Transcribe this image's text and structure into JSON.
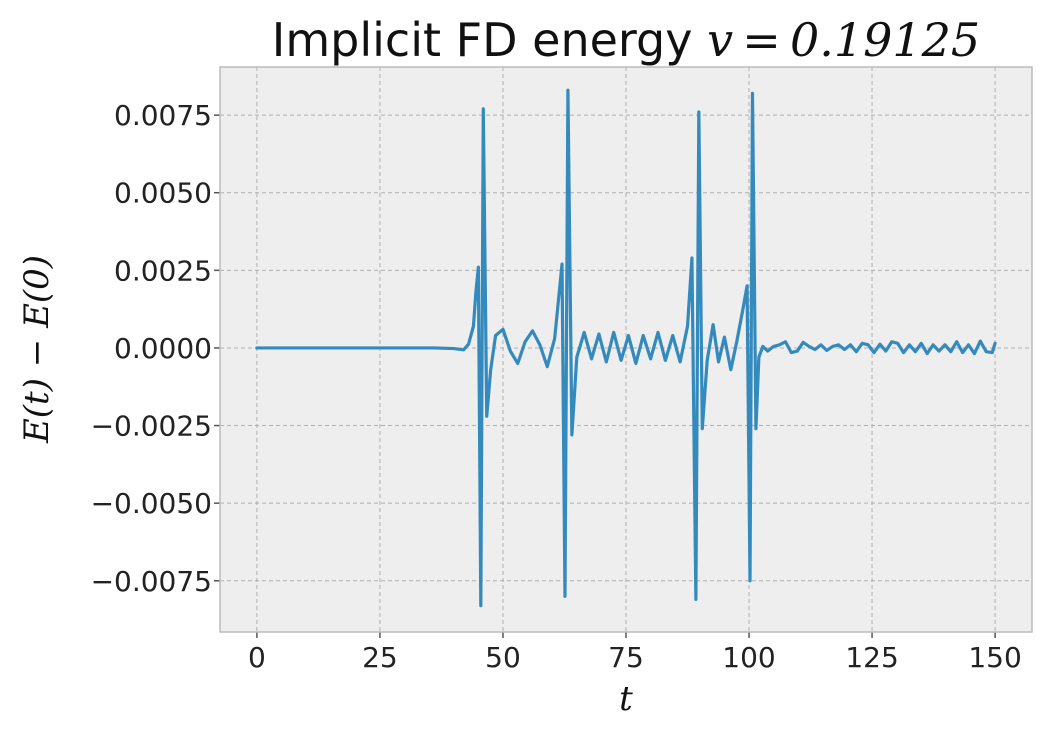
{
  "chart_data": {
    "type": "line",
    "title": {
      "text": "Implicit FD energy ",
      "math": "v = 0.19125"
    },
    "xlabel": "t",
    "ylabel": "E(t) − E(0)",
    "xlim": [
      -7.5,
      157.5
    ],
    "ylim": [
      -0.00915,
      0.00905
    ],
    "xticks": [
      {
        "value": 0,
        "label": "0"
      },
      {
        "value": 25,
        "label": "25"
      },
      {
        "value": 50,
        "label": "50"
      },
      {
        "value": 75,
        "label": "75"
      },
      {
        "value": 100,
        "label": "100"
      },
      {
        "value": 125,
        "label": "125"
      },
      {
        "value": 150,
        "label": "150"
      }
    ],
    "yticks": [
      {
        "value": -0.0075,
        "label": "−0.0075"
      },
      {
        "value": -0.005,
        "label": "−0.0050"
      },
      {
        "value": -0.0025,
        "label": "−0.0025"
      },
      {
        "value": 0,
        "label": "0.0000"
      },
      {
        "value": 0.0025,
        "label": "0.0025"
      },
      {
        "value": 0.005,
        "label": "0.0050"
      },
      {
        "value": 0.0075,
        "label": "0.0075"
      }
    ],
    "grid": true,
    "colors": {
      "line": "#348abd",
      "background": "#eeeeee",
      "frame": "#bcbcbc"
    },
    "series": [
      {
        "x": [
          0,
          10,
          20,
          30,
          36,
          40,
          42,
          43,
          44,
          44.5,
          45,
          45.5,
          46,
          46.7,
          47.5,
          48.5,
          50,
          51.5,
          53,
          54.5,
          56,
          57.5,
          59,
          60.5,
          62,
          62.6,
          63.2,
          64,
          65,
          66.5,
          68,
          69.5,
          71,
          72.5,
          74,
          75.5,
          77,
          78.5,
          80,
          81.5,
          83,
          84.5,
          86,
          87.5,
          88.4,
          89.2,
          89.8,
          90.5,
          91.5,
          92.7,
          93.8,
          95,
          96.3,
          97.5,
          98.7,
          99.6,
          100.2,
          100.7,
          101.4,
          102,
          102.8,
          103.8,
          105,
          106.2,
          107.4,
          108.6,
          109.8,
          111,
          112.2,
          113.4,
          114.6,
          115.8,
          117,
          118.2,
          119.4,
          120.6,
          121.8,
          123,
          124.2,
          125.4,
          126.6,
          127.8,
          129,
          130.2,
          131.4,
          132.6,
          133.8,
          135,
          136.2,
          137.4,
          138.6,
          139.8,
          141,
          142.2,
          143.4,
          144.6,
          145.8,
          147,
          148.2,
          149.4,
          150
        ],
        "y": [
          0,
          0,
          0,
          0,
          0,
          -2e-05,
          -6e-05,
          0.00012,
          0.0007,
          0.0018,
          0.0026,
          -0.0083,
          0.0077,
          -0.0022,
          -0.0007,
          0.0004,
          0.0006,
          -0.0001,
          -0.0005,
          0.0002,
          0.00055,
          0.0001,
          -0.0006,
          0.0003,
          0.0027,
          -0.008,
          0.0083,
          -0.0028,
          -0.0003,
          0.0005,
          -0.00035,
          0.00045,
          -0.00045,
          0.0005,
          -0.0004,
          0.0004,
          -0.0005,
          0.0004,
          -0.00035,
          0.0005,
          -0.0004,
          0.0004,
          -0.00045,
          0.0007,
          0.0029,
          -0.0081,
          0.0076,
          -0.0026,
          -0.0004,
          0.00075,
          -0.00045,
          0.00035,
          -0.0007,
          0.0002,
          0.0012,
          0.002,
          -0.0075,
          0.0082,
          -0.0026,
          -0.0003,
          5e-05,
          -0.0001,
          5e-05,
          0.0001,
          0.0002,
          -0.00015,
          -0.0001,
          0.00018,
          5e-05,
          -5e-05,
          0.0001,
          -8e-05,
          5e-05,
          0.0001,
          -5e-05,
          0.0001,
          -0.00012,
          0.00015,
          0.0001,
          -0.00015,
          0.00012,
          -0.0001,
          0.0002,
          0.00015,
          -0.00015,
          0.0001,
          -0.00012,
          0.00015,
          -0.00018,
          0.0001,
          -0.0001,
          0.0001,
          -0.00012,
          0.0002,
          -0.00015,
          0.0001,
          -0.00018,
          0.00022,
          -0.00012,
          -0.00015,
          0.00015
        ]
      }
    ]
  }
}
